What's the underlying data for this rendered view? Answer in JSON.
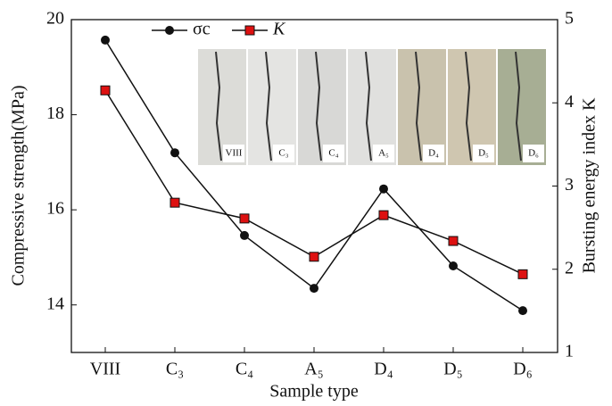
{
  "chart_data": {
    "type": "line",
    "categories": [
      "VIII",
      "C₃",
      "C₄",
      "A₅",
      "D₄",
      "D₅",
      "D₆"
    ],
    "x_label": "Sample type",
    "y_label": "Compressive strength(MPa)",
    "y2_label": "Bursting energy index K",
    "ylim": [
      13,
      20
    ],
    "yticks": [
      14,
      16,
      18,
      20
    ],
    "y2lim": [
      1,
      5
    ],
    "y2ticks": [
      1,
      2,
      3,
      4,
      5
    ],
    "series": [
      {
        "name": "σc",
        "color": "#111111",
        "marker": "circle",
        "values": [
          19.57,
          17.2,
          15.46,
          14.35,
          16.44,
          14.82,
          13.88
        ]
      },
      {
        "name": "K",
        "color": "#dd1111",
        "marker": "square",
        "axis": "y2",
        "values": [
          4.15,
          2.8,
          2.61,
          2.15,
          2.65,
          2.34,
          1.94
        ]
      }
    ]
  }
}
